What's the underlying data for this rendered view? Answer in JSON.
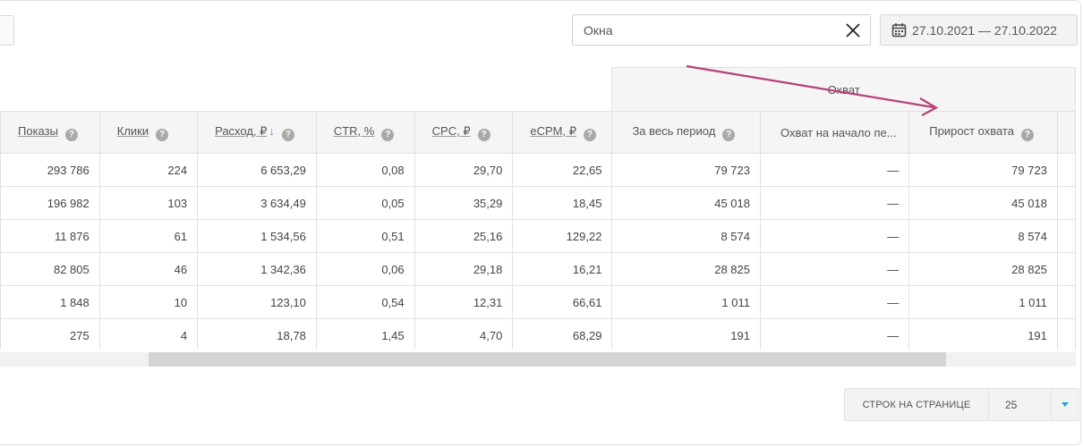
{
  "search": {
    "value": "Окна"
  },
  "date_range": {
    "label": "27.10.2021 — 27.10.2022"
  },
  "table": {
    "group_header": "Охват",
    "columns": [
      {
        "label": "Показы",
        "sortable": true,
        "sorted": false
      },
      {
        "label": "Клики",
        "sortable": true,
        "sorted": false
      },
      {
        "label": "Расход, ₽",
        "sortable": true,
        "sorted": true
      },
      {
        "label": "CTR, %",
        "sortable": true,
        "sorted": false
      },
      {
        "label": "CPC, ₽",
        "sortable": true,
        "sorted": false
      },
      {
        "label": "eCPM, ₽",
        "sortable": true,
        "sorted": false
      },
      {
        "label": "За весь период",
        "sortable": false,
        "sorted": false
      },
      {
        "label": "Охват на начало пе...",
        "sortable": false,
        "sorted": false
      },
      {
        "label": "Прирост охвата",
        "sortable": false,
        "sorted": false
      }
    ],
    "rows": [
      [
        "293 786",
        "224",
        "6 653,29",
        "0,08",
        "29,70",
        "22,65",
        "79 723",
        "—",
        "79 723"
      ],
      [
        "196 982",
        "103",
        "3 634,49",
        "0,05",
        "35,29",
        "18,45",
        "45 018",
        "—",
        "45 018"
      ],
      [
        "11 876",
        "61",
        "1 534,56",
        "0,51",
        "25,16",
        "129,22",
        "8 574",
        "—",
        "8 574"
      ],
      [
        "82 805",
        "46",
        "1 342,36",
        "0,06",
        "29,18",
        "16,21",
        "28 825",
        "—",
        "28 825"
      ],
      [
        "1 848",
        "10",
        "123,10",
        "0,54",
        "12,31",
        "66,61",
        "1 011",
        "—",
        "1 011"
      ],
      [
        "275",
        "4",
        "18,78",
        "1,45",
        "4,70",
        "68,29",
        "191",
        "—",
        "191"
      ]
    ]
  },
  "pager": {
    "label": "СТРОК НА СТРАНИЦЕ",
    "value": "25"
  },
  "colors": {
    "accent": "#2aa3d8",
    "annotation_arrow": "#b5417a",
    "header_bg": "#f5f5f5"
  }
}
